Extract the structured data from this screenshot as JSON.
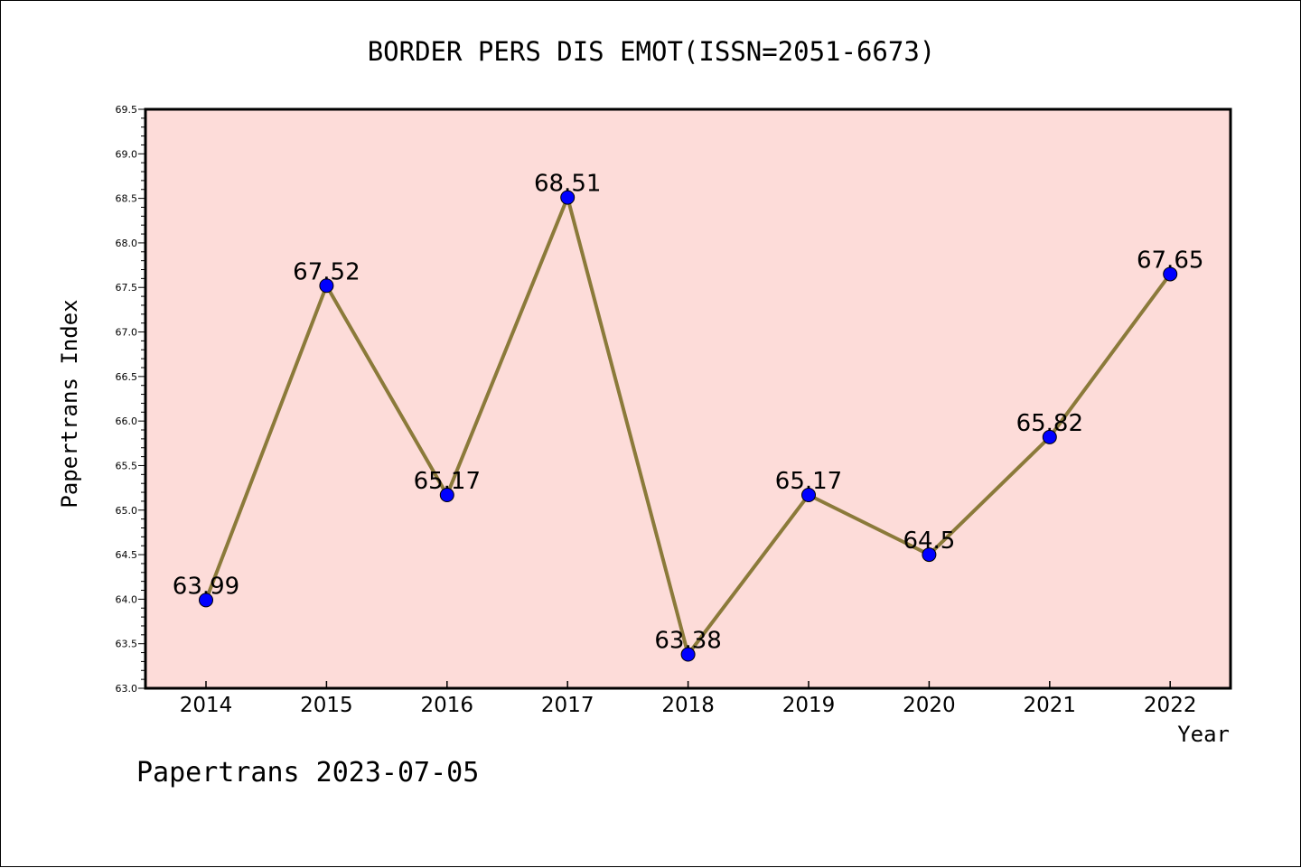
{
  "chart_data": {
    "type": "line",
    "title": "BORDER PERS DIS EMOT(ISSN=2051-6673)",
    "xlabel": "Year",
    "ylabel": "Papertrans Index",
    "categories": [
      "2014",
      "2015",
      "2016",
      "2017",
      "2018",
      "2019",
      "2020",
      "2021",
      "2022"
    ],
    "values": [
      63.99,
      67.52,
      65.17,
      68.51,
      63.38,
      65.17,
      64.5,
      65.82,
      67.65
    ],
    "data_labels": [
      "63.99",
      "67.52",
      "65.17",
      "68.51",
      "63.38",
      "65.17",
      "64.5",
      "65.82",
      "67.65"
    ],
    "ylim": [
      63.0,
      69.5
    ],
    "yticks": [
      "63.0",
      "63.5",
      "64.0",
      "64.5",
      "65.0",
      "65.5",
      "66.0",
      "66.5",
      "67.0",
      "67.5",
      "68.0",
      "68.5",
      "69.0",
      "69.5"
    ],
    "grid": false,
    "colors": {
      "plot_background": "#fddcd9",
      "line": "#8b7a3a",
      "marker": "#0000ff"
    }
  },
  "footer": "Papertrans 2023-07-05"
}
